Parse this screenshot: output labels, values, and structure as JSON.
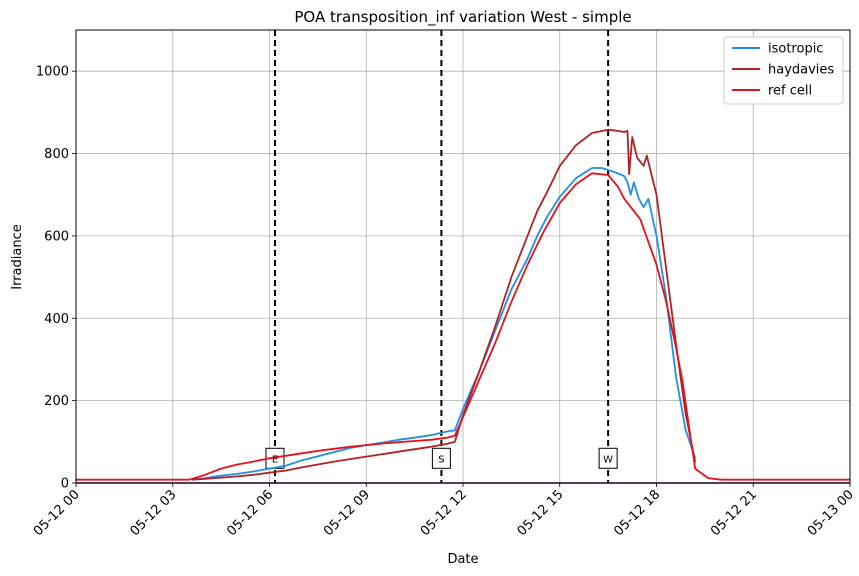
{
  "chart_data": {
    "type": "line",
    "title": "POA transposition_inf variation West - simple",
    "xlabel": "Date",
    "ylabel": "Irradiance",
    "x_ticks": [
      {
        "h": 0,
        "label": "05-12 00"
      },
      {
        "h": 3,
        "label": "05-12 03"
      },
      {
        "h": 6,
        "label": "05-12 06"
      },
      {
        "h": 9,
        "label": "05-12 09"
      },
      {
        "h": 12,
        "label": "05-12 12"
      },
      {
        "h": 15,
        "label": "05-12 15"
      },
      {
        "h": 18,
        "label": "05-12 18"
      },
      {
        "h": 21,
        "label": "05-12 21"
      },
      {
        "h": 24,
        "label": "05-13 00"
      }
    ],
    "x_range": [
      "05-12 00",
      "05-13 00"
    ],
    "ylim": [
      0,
      1100
    ],
    "y_ticks": [
      0,
      200,
      400,
      600,
      800,
      1000
    ],
    "grid": true,
    "legend_position": "top-right",
    "vlines": [
      {
        "h": 6.17,
        "label": "E"
      },
      {
        "h": 11.33,
        "label": "S"
      },
      {
        "h": 16.5,
        "label": "W"
      }
    ],
    "series": [
      {
        "name": "isotropic",
        "color": "#1f8fe8",
        "points": [
          [
            3.6,
            8
          ],
          [
            4.0,
            12
          ],
          [
            4.5,
            18
          ],
          [
            5.0,
            22
          ],
          [
            5.5,
            28
          ],
          [
            6.0,
            35
          ],
          [
            6.5,
            42
          ],
          [
            7.0,
            55
          ],
          [
            7.5,
            65
          ],
          [
            8.0,
            75
          ],
          [
            8.5,
            85
          ],
          [
            9.0,
            92
          ],
          [
            9.5,
            98
          ],
          [
            10.0,
            105
          ],
          [
            10.5,
            110
          ],
          [
            11.0,
            116
          ],
          [
            11.5,
            125
          ],
          [
            11.75,
            128
          ],
          [
            12.0,
            180
          ],
          [
            12.5,
            270
          ],
          [
            13.0,
            370
          ],
          [
            13.5,
            470
          ],
          [
            14.0,
            545
          ],
          [
            14.3,
            600
          ],
          [
            14.6,
            645
          ],
          [
            15.0,
            695
          ],
          [
            15.5,
            740
          ],
          [
            16.0,
            765
          ],
          [
            16.3,
            765
          ],
          [
            16.5,
            760
          ],
          [
            16.8,
            752
          ],
          [
            17.0,
            745
          ],
          [
            17.1,
            730
          ],
          [
            17.2,
            700
          ],
          [
            17.3,
            730
          ],
          [
            17.45,
            690
          ],
          [
            17.6,
            670
          ],
          [
            17.75,
            690
          ],
          [
            18.0,
            600
          ],
          [
            18.3,
            450
          ],
          [
            18.6,
            260
          ],
          [
            18.9,
            130
          ],
          [
            19.2,
            60
          ]
        ]
      },
      {
        "name": "haydavies",
        "color": "#b22222",
        "points": [
          [
            3.6,
            8
          ],
          [
            4.0,
            10
          ],
          [
            4.5,
            13
          ],
          [
            5.0,
            16
          ],
          [
            5.5,
            20
          ],
          [
            6.0,
            25
          ],
          [
            6.5,
            30
          ],
          [
            7.0,
            38
          ],
          [
            7.5,
            45
          ],
          [
            8.0,
            52
          ],
          [
            8.5,
            58
          ],
          [
            9.0,
            64
          ],
          [
            9.5,
            70
          ],
          [
            10.0,
            76
          ],
          [
            10.5,
            82
          ],
          [
            11.0,
            88
          ],
          [
            11.5,
            95
          ],
          [
            11.75,
            100
          ],
          [
            12.0,
            165
          ],
          [
            12.5,
            270
          ],
          [
            13.0,
            380
          ],
          [
            13.5,
            500
          ],
          [
            14.0,
            600
          ],
          [
            14.3,
            660
          ],
          [
            14.6,
            705
          ],
          [
            15.0,
            770
          ],
          [
            15.5,
            820
          ],
          [
            16.0,
            850
          ],
          [
            16.5,
            858
          ],
          [
            16.8,
            855
          ],
          [
            17.0,
            852
          ],
          [
            17.1,
            855
          ],
          [
            17.15,
            750
          ],
          [
            17.25,
            840
          ],
          [
            17.4,
            790
          ],
          [
            17.6,
            770
          ],
          [
            17.7,
            795
          ],
          [
            18.0,
            700
          ],
          [
            18.3,
            520
          ],
          [
            18.6,
            340
          ],
          [
            18.9,
            170
          ],
          [
            19.2,
            50
          ]
        ]
      },
      {
        "name": "ref cell",
        "color": "#e8101a",
        "points": [
          [
            0.0,
            8
          ],
          [
            3.5,
            8
          ],
          [
            3.6,
            10
          ],
          [
            4.0,
            20
          ],
          [
            4.5,
            35
          ],
          [
            5.0,
            45
          ],
          [
            5.5,
            52
          ],
          [
            6.0,
            60
          ],
          [
            6.5,
            66
          ],
          [
            7.0,
            72
          ],
          [
            7.5,
            78
          ],
          [
            8.0,
            83
          ],
          [
            8.5,
            88
          ],
          [
            9.0,
            92
          ],
          [
            9.5,
            96
          ],
          [
            10.0,
            99
          ],
          [
            10.5,
            102
          ],
          [
            11.0,
            105
          ],
          [
            11.5,
            110
          ],
          [
            11.75,
            115
          ],
          [
            12.0,
            160
          ],
          [
            12.5,
            250
          ],
          [
            13.0,
            340
          ],
          [
            13.5,
            440
          ],
          [
            14.0,
            530
          ],
          [
            14.5,
            610
          ],
          [
            15.0,
            680
          ],
          [
            15.5,
            725
          ],
          [
            16.0,
            752
          ],
          [
            16.5,
            748
          ],
          [
            16.8,
            720
          ],
          [
            17.0,
            690
          ],
          [
            17.5,
            640
          ],
          [
            18.0,
            530
          ],
          [
            18.3,
            440
          ],
          [
            18.6,
            330
          ],
          [
            18.8,
            250
          ],
          [
            19.0,
            140
          ],
          [
            19.2,
            35
          ],
          [
            19.6,
            12
          ],
          [
            20.0,
            8
          ],
          [
            24.0,
            8
          ]
        ]
      }
    ]
  }
}
